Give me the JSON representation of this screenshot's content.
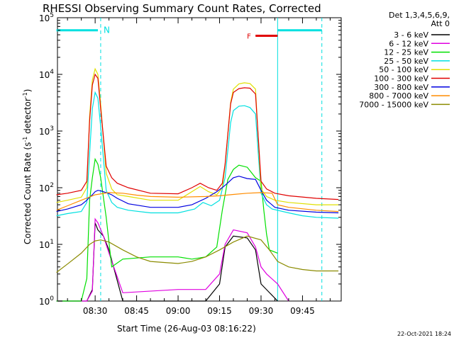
{
  "chart_data": {
    "type": "line",
    "title": "RHESSI Observing Summary Count Rates, Corrected",
    "xlabel": "Start Time (26-Aug-03 08:16:22)",
    "ylabel": "Corrected Count Rate (s⁻¹ detector⁻¹)",
    "ylabel_parts": [
      "Corrected Count Rate (s",
      "-1",
      " detector",
      "-1",
      ")"
    ],
    "yscale": "log",
    "ylim": [
      1,
      100000
    ],
    "xlim": [
      "08:16:22",
      "09:59:00"
    ],
    "x_ticks": [
      "08:30",
      "08:45",
      "09:00",
      "09:15",
      "09:30",
      "09:45"
    ],
    "y_ticks": [
      {
        "base": "10",
        "exp": "0",
        "value": 1
      },
      {
        "base": "10",
        "exp": "1",
        "value": 10
      },
      {
        "base": "10",
        "exp": "2",
        "value": 100
      },
      {
        "base": "10",
        "exp": "3",
        "value": 1000
      },
      {
        "base": "10",
        "exp": "4",
        "value": 10000
      },
      {
        "base": "10",
        "exp": "5",
        "value": 100000
      }
    ],
    "legend_header": [
      "Det 1,3,4,5,6,9,",
      "Att 0"
    ],
    "legend_placement": "right-outside",
    "series": [
      {
        "name": "3 - 6 keV",
        "color": "#000000",
        "x": [
          "08:16",
          "08:27",
          "08:29",
          "08:30",
          "08:31",
          "08:33",
          "08:35",
          "08:40",
          "09:00",
          "09:10",
          "09:15",
          "09:17",
          "09:20",
          "09:25",
          "09:28",
          "09:30",
          "09:36"
        ],
        "y": [
          1,
          1,
          1.6,
          24,
          18,
          14,
          8,
          1,
          1,
          1,
          2,
          9,
          14,
          13,
          8,
          2,
          1
        ]
      },
      {
        "name": "6 - 12 keV",
        "color": "#e000e0",
        "x": [
          "08:16",
          "08:27",
          "08:29",
          "08:30",
          "08:31",
          "08:33",
          "08:35",
          "08:40",
          "09:00",
          "09:10",
          "09:15",
          "09:17",
          "09:20",
          "09:25",
          "09:28",
          "09:30",
          "09:32",
          "09:36",
          "09:40"
        ],
        "y": [
          1,
          1,
          1.5,
          28,
          24,
          14,
          7,
          1.4,
          1.6,
          1.6,
          3,
          10,
          18,
          16,
          9,
          4,
          3,
          2,
          1
        ]
      },
      {
        "name": "12 - 25 keV",
        "color": "#00e000",
        "x": [
          "08:16",
          "08:25",
          "08:27",
          "08:28",
          "08:29",
          "08:30",
          "08:31",
          "08:32",
          "08:34",
          "08:36",
          "08:40",
          "08:50",
          "09:00",
          "09:05",
          "09:10",
          "09:14",
          "09:16",
          "09:18",
          "09:20",
          "09:22",
          "09:25",
          "09:28",
          "09:30",
          "09:31",
          "09:32",
          "09:33",
          "09:36"
        ],
        "y": [
          1,
          1,
          2.5,
          60,
          150,
          320,
          260,
          150,
          30,
          4,
          5.5,
          6,
          6,
          5.5,
          6,
          9,
          40,
          140,
          210,
          250,
          230,
          150,
          130,
          40,
          15,
          8,
          7
        ]
      },
      {
        "name": "25 - 50 keV",
        "color": "#00e0e0",
        "x": [
          "08:16",
          "08:20",
          "08:25",
          "08:27",
          "08:28",
          "08:29",
          "08:30",
          "08:31",
          "08:32",
          "08:34",
          "08:36",
          "08:38",
          "08:42",
          "08:50",
          "09:00",
          "09:06",
          "09:09",
          "09:12",
          "09:15",
          "09:17",
          "09:19",
          "09:20",
          "09:22",
          "09:24",
          "09:26",
          "09:28",
          "09:30",
          "09:32",
          "09:34",
          "09:40",
          "09:45",
          "09:50",
          "09:58"
        ],
        "y": [
          32,
          35,
          38,
          55,
          400,
          2500,
          4800,
          3800,
          1200,
          90,
          55,
          45,
          40,
          36,
          36,
          42,
          55,
          48,
          60,
          150,
          1400,
          2300,
          2750,
          2800,
          2600,
          2000,
          80,
          50,
          42,
          36,
          32,
          30,
          29
        ]
      },
      {
        "name": "50 - 100 keV",
        "color": "#e0e000",
        "x": [
          "08:16",
          "08:20",
          "08:25",
          "08:27",
          "08:28",
          "08:29",
          "08:30",
          "08:31",
          "08:32",
          "08:34",
          "08:36",
          "08:38",
          "08:42",
          "08:50",
          "09:00",
          "09:05",
          "09:08",
          "09:11",
          "09:14",
          "09:16",
          "09:17",
          "09:19",
          "09:20",
          "09:22",
          "09:24",
          "09:26",
          "09:28",
          "09:30",
          "09:32",
          "09:35",
          "09:40",
          "09:50",
          "09:58"
        ],
        "y": [
          55,
          60,
          68,
          100,
          1800,
          8000,
          12500,
          10000,
          3000,
          180,
          95,
          75,
          70,
          60,
          60,
          85,
          105,
          85,
          75,
          100,
          250,
          3200,
          5500,
          6800,
          7100,
          6900,
          5500,
          95,
          70,
          60,
          55,
          50,
          50
        ]
      },
      {
        "name": "100 - 300 keV",
        "color": "#e00000",
        "x": [
          "08:16",
          "08:20",
          "08:25",
          "08:27",
          "08:28",
          "08:29",
          "08:30",
          "08:31",
          "08:32",
          "08:34",
          "08:36",
          "08:38",
          "08:42",
          "08:50",
          "09:00",
          "09:05",
          "09:08",
          "09:11",
          "09:14",
          "09:16",
          "09:17",
          "09:19",
          "09:20",
          "09:22",
          "09:24",
          "09:26",
          "09:28",
          "09:30",
          "09:32",
          "09:35",
          "09:40",
          "09:50",
          "09:58"
        ],
        "y": [
          75,
          80,
          90,
          130,
          1500,
          6500,
          10000,
          8500,
          2500,
          240,
          150,
          120,
          100,
          80,
          78,
          100,
          120,
          100,
          90,
          120,
          260,
          3000,
          4800,
          5600,
          5800,
          5700,
          4500,
          130,
          95,
          80,
          72,
          65,
          62
        ]
      },
      {
        "name": "300 - 800 keV",
        "color": "#0000e0",
        "x": [
          "08:16",
          "08:20",
          "08:25",
          "08:27",
          "08:28",
          "08:29",
          "08:30",
          "08:31",
          "08:32",
          "08:34",
          "08:36",
          "08:38",
          "08:42",
          "08:50",
          "09:00",
          "09:05",
          "09:10",
          "09:14",
          "09:17",
          "09:20",
          "09:22",
          "09:25",
          "09:28",
          "09:30",
          "09:32",
          "09:35",
          "09:40",
          "09:50",
          "09:58"
        ],
        "y": [
          38,
          42,
          50,
          60,
          68,
          75,
          85,
          90,
          88,
          82,
          75,
          65,
          52,
          45,
          45,
          50,
          65,
          85,
          110,
          150,
          160,
          145,
          140,
          90,
          60,
          45,
          40,
          37,
          36
        ]
      },
      {
        "name": "800 - 7000 keV",
        "color": "#ff8c00",
        "x": [
          "08:16",
          "08:20",
          "08:25",
          "08:30",
          "08:35",
          "08:40",
          "08:45",
          "08:50",
          "09:00",
          "09:10",
          "09:15",
          "09:20",
          "09:25",
          "09:30",
          "09:34",
          "09:36",
          "09:40",
          "09:50",
          "09:58"
        ],
        "y": [
          40,
          48,
          60,
          75,
          82,
          80,
          74,
          70,
          68,
          70,
          72,
          76,
          80,
          82,
          80,
          50,
          45,
          40,
          38
        ]
      },
      {
        "name": "7000 - 15000 keV",
        "color": "#8b8b00",
        "x": [
          "08:16",
          "08:20",
          "08:25",
          "08:28",
          "08:30",
          "08:32",
          "08:35",
          "08:40",
          "08:45",
          "08:50",
          "09:00",
          "09:05",
          "09:10",
          "09:15",
          "09:20",
          "09:25",
          "09:30",
          "09:33",
          "09:36",
          "09:40",
          "09:45",
          "09:50",
          "09:58"
        ],
        "y": [
          3.2,
          4.5,
          7,
          10,
          11.5,
          12,
          11,
          8,
          6,
          5,
          4.6,
          5,
          6,
          8,
          11,
          14,
          12,
          8,
          5,
          4,
          3.6,
          3.4,
          3.4
        ]
      }
    ],
    "annotations": {
      "flag_n": {
        "label": "N",
        "color": "#00e0e0",
        "start": "08:16",
        "end": "08:31",
        "value": 60000
      },
      "flag_n_right": {
        "color": "#00e0e0",
        "start": "09:36",
        "end": "09:52",
        "value": 60000
      },
      "flag_f": {
        "label": "F",
        "color": "#e00000",
        "start": "09:28",
        "end": "09:36",
        "value": 48000
      },
      "vlines": [
        {
          "time": "08:32",
          "color": "#00e0e0",
          "style": "dashed"
        },
        {
          "time": "09:36",
          "color": "#00e0e0",
          "style": "solid"
        },
        {
          "time": "09:52",
          "color": "#00e0e0",
          "style": "dashed"
        }
      ]
    },
    "footer_timestamp": "22-Oct-2021 18:24"
  }
}
